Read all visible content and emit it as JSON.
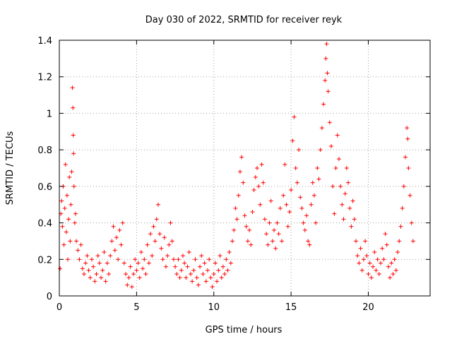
{
  "chart_data": {
    "type": "scatter",
    "title": "Day 030 of 2022, SRMTID for receiver reyk",
    "xlabel": "GPS time / hours",
    "ylabel": "SRMTID / TECUs",
    "xlim": [
      0,
      24
    ],
    "ylim": [
      0,
      1.4
    ],
    "xticks": [
      0,
      5,
      10,
      15,
      20
    ],
    "xtick_labels": [
      "0",
      "5",
      "10",
      "15",
      "20"
    ],
    "yticks": [
      0,
      0.2,
      0.4,
      0.6,
      0.8,
      1,
      1.2,
      1.4
    ],
    "ytick_labels": [
      "0",
      "0.2",
      "0.4",
      "0.6",
      "0.8",
      "1",
      "1.2",
      "1.4"
    ],
    "grid": true,
    "marker": "+",
    "series": [
      {
        "name": "reyk",
        "color": "#ff0000",
        "points": [
          [
            0.05,
            0.15
          ],
          [
            0.1,
            0.45
          ],
          [
            0.15,
            0.52
          ],
          [
            0.2,
            0.38
          ],
          [
            0.25,
            0.6
          ],
          [
            0.3,
            0.28
          ],
          [
            0.35,
            0.48
          ],
          [
            0.4,
            0.72
          ],
          [
            0.45,
            0.35
          ],
          [
            0.5,
            0.55
          ],
          [
            0.55,
            0.2
          ],
          [
            0.6,
            0.42
          ],
          [
            0.65,
            0.65
          ],
          [
            0.7,
            0.3
          ],
          [
            0.75,
            0.5
          ],
          [
            0.8,
            0.68
          ],
          [
            0.85,
            1.14
          ],
          [
            0.88,
            1.03
          ],
          [
            0.9,
            0.88
          ],
          [
            0.92,
            0.78
          ],
          [
            0.95,
            0.6
          ],
          [
            1.0,
            0.4
          ],
          [
            1.05,
            0.45
          ],
          [
            1.1,
            0.3
          ],
          [
            1.2,
            0.25
          ],
          [
            1.3,
            0.2
          ],
          [
            1.4,
            0.28
          ],
          [
            1.5,
            0.15
          ],
          [
            1.6,
            0.12
          ],
          [
            1.7,
            0.18
          ],
          [
            1.8,
            0.22
          ],
          [
            1.9,
            0.14
          ],
          [
            2.0,
            0.1
          ],
          [
            2.1,
            0.2
          ],
          [
            2.2,
            0.16
          ],
          [
            2.3,
            0.08
          ],
          [
            2.4,
            0.12
          ],
          [
            2.5,
            0.22
          ],
          [
            2.6,
            0.18
          ],
          [
            2.7,
            0.1
          ],
          [
            2.8,
            0.14
          ],
          [
            2.9,
            0.24
          ],
          [
            3.0,
            0.08
          ],
          [
            3.1,
            0.18
          ],
          [
            3.2,
            0.12
          ],
          [
            3.3,
            0.22
          ],
          [
            3.4,
            0.3
          ],
          [
            3.5,
            0.38
          ],
          [
            3.6,
            0.25
          ],
          [
            3.7,
            0.32
          ],
          [
            3.8,
            0.2
          ],
          [
            3.9,
            0.36
          ],
          [
            4.0,
            0.28
          ],
          [
            4.1,
            0.4
          ],
          [
            4.2,
            0.18
          ],
          [
            4.3,
            0.12
          ],
          [
            4.4,
            0.06
          ],
          [
            4.5,
            0.1
          ],
          [
            4.6,
            0.16
          ],
          [
            4.7,
            0.05
          ],
          [
            4.8,
            0.12
          ],
          [
            4.9,
            0.2
          ],
          [
            5.0,
            0.14
          ],
          [
            5.1,
            0.18
          ],
          [
            5.2,
            0.1
          ],
          [
            5.3,
            0.24
          ],
          [
            5.4,
            0.15
          ],
          [
            5.5,
            0.2
          ],
          [
            5.6,
            0.12
          ],
          [
            5.7,
            0.28
          ],
          [
            5.8,
            0.18
          ],
          [
            5.9,
            0.34
          ],
          [
            6.0,
            0.22
          ],
          [
            6.1,
            0.38
          ],
          [
            6.2,
            0.3
          ],
          [
            6.3,
            0.42
          ],
          [
            6.4,
            0.5
          ],
          [
            6.5,
            0.34
          ],
          [
            6.6,
            0.26
          ],
          [
            6.7,
            0.2
          ],
          [
            6.8,
            0.32
          ],
          [
            6.9,
            0.16
          ],
          [
            7.0,
            0.22
          ],
          [
            7.1,
            0.28
          ],
          [
            7.2,
            0.4
          ],
          [
            7.3,
            0.3
          ],
          [
            7.4,
            0.2
          ],
          [
            7.5,
            0.16
          ],
          [
            7.6,
            0.12
          ],
          [
            7.7,
            0.2
          ],
          [
            7.8,
            0.1
          ],
          [
            7.9,
            0.14
          ],
          [
            8.0,
            0.22
          ],
          [
            8.1,
            0.18
          ],
          [
            8.2,
            0.1
          ],
          [
            8.3,
            0.16
          ],
          [
            8.4,
            0.24
          ],
          [
            8.5,
            0.12
          ],
          [
            8.6,
            0.08
          ],
          [
            8.7,
            0.14
          ],
          [
            8.8,
            0.2
          ],
          [
            8.9,
            0.1
          ],
          [
            9.0,
            0.06
          ],
          [
            9.1,
            0.16
          ],
          [
            9.2,
            0.22
          ],
          [
            9.3,
            0.12
          ],
          [
            9.4,
            0.18
          ],
          [
            9.5,
            0.08
          ],
          [
            9.6,
            0.14
          ],
          [
            9.7,
            0.2
          ],
          [
            9.8,
            0.1
          ],
          [
            9.9,
            0.05
          ],
          [
            10.0,
            0.12
          ],
          [
            10.1,
            0.18
          ],
          [
            10.2,
            0.08
          ],
          [
            10.3,
            0.14
          ],
          [
            10.4,
            0.22
          ],
          [
            10.5,
            0.1
          ],
          [
            10.6,
            0.16
          ],
          [
            10.7,
            0.12
          ],
          [
            10.8,
            0.2
          ],
          [
            10.9,
            0.14
          ],
          [
            11.0,
            0.24
          ],
          [
            11.1,
            0.18
          ],
          [
            11.2,
            0.3
          ],
          [
            11.3,
            0.36
          ],
          [
            11.4,
            0.48
          ],
          [
            11.5,
            0.42
          ],
          [
            11.6,
            0.55
          ],
          [
            11.7,
            0.68
          ],
          [
            11.8,
            0.76
          ],
          [
            11.9,
            0.62
          ],
          [
            12.0,
            0.44
          ],
          [
            12.1,
            0.38
          ],
          [
            12.2,
            0.3
          ],
          [
            12.3,
            0.36
          ],
          [
            12.4,
            0.28
          ],
          [
            12.5,
            0.46
          ],
          [
            12.6,
            0.58
          ],
          [
            12.7,
            0.65
          ],
          [
            12.8,
            0.7
          ],
          [
            12.9,
            0.6
          ],
          [
            13.0,
            0.5
          ],
          [
            13.1,
            0.72
          ],
          [
            13.2,
            0.62
          ],
          [
            13.3,
            0.42
          ],
          [
            13.4,
            0.34
          ],
          [
            13.5,
            0.28
          ],
          [
            13.6,
            0.4
          ],
          [
            13.7,
            0.52
          ],
          [
            13.8,
            0.3
          ],
          [
            13.9,
            0.36
          ],
          [
            14.0,
            0.26
          ],
          [
            14.1,
            0.4
          ],
          [
            14.2,
            0.34
          ],
          [
            14.3,
            0.48
          ],
          [
            14.4,
            0.3
          ],
          [
            14.5,
            0.55
          ],
          [
            14.6,
            0.72
          ],
          [
            14.7,
            0.5
          ],
          [
            14.8,
            0.38
          ],
          [
            14.9,
            0.46
          ],
          [
            15.0,
            0.58
          ],
          [
            15.1,
            0.85
          ],
          [
            15.2,
            0.98
          ],
          [
            15.3,
            0.7
          ],
          [
            15.4,
            0.62
          ],
          [
            15.5,
            0.8
          ],
          [
            15.6,
            0.54
          ],
          [
            15.7,
            0.48
          ],
          [
            15.8,
            0.4
          ],
          [
            15.9,
            0.36
          ],
          [
            16.0,
            0.44
          ],
          [
            16.1,
            0.3
          ],
          [
            16.2,
            0.28
          ],
          [
            16.3,
            0.5
          ],
          [
            16.4,
            0.62
          ],
          [
            16.5,
            0.55
          ],
          [
            16.6,
            0.4
          ],
          [
            16.7,
            0.7
          ],
          [
            16.8,
            0.64
          ],
          [
            16.9,
            0.8
          ],
          [
            17.0,
            0.92
          ],
          [
            17.1,
            1.05
          ],
          [
            17.2,
            1.18
          ],
          [
            17.25,
            1.3
          ],
          [
            17.3,
            1.38
          ],
          [
            17.35,
            1.22
          ],
          [
            17.4,
            1.12
          ],
          [
            17.5,
            0.95
          ],
          [
            17.6,
            0.82
          ],
          [
            17.7,
            0.6
          ],
          [
            17.8,
            0.45
          ],
          [
            17.9,
            0.7
          ],
          [
            18.0,
            0.88
          ],
          [
            18.1,
            0.75
          ],
          [
            18.2,
            0.6
          ],
          [
            18.3,
            0.5
          ],
          [
            18.4,
            0.42
          ],
          [
            18.5,
            0.56
          ],
          [
            18.6,
            0.7
          ],
          [
            18.7,
            0.62
          ],
          [
            18.8,
            0.48
          ],
          [
            18.9,
            0.38
          ],
          [
            19.0,
            0.52
          ],
          [
            19.1,
            0.42
          ],
          [
            19.2,
            0.3
          ],
          [
            19.3,
            0.22
          ],
          [
            19.4,
            0.18
          ],
          [
            19.5,
            0.26
          ],
          [
            19.6,
            0.14
          ],
          [
            19.7,
            0.2
          ],
          [
            19.8,
            0.3
          ],
          [
            19.9,
            0.22
          ],
          [
            20.0,
            0.12
          ],
          [
            20.1,
            0.18
          ],
          [
            20.2,
            0.1
          ],
          [
            20.3,
            0.16
          ],
          [
            20.4,
            0.24
          ],
          [
            20.5,
            0.14
          ],
          [
            20.6,
            0.2
          ],
          [
            20.7,
            0.12
          ],
          [
            20.8,
            0.18
          ],
          [
            20.9,
            0.26
          ],
          [
            21.0,
            0.2
          ],
          [
            21.1,
            0.34
          ],
          [
            21.2,
            0.28
          ],
          [
            21.3,
            0.16
          ],
          [
            21.4,
            0.1
          ],
          [
            21.5,
            0.18
          ],
          [
            21.6,
            0.12
          ],
          [
            21.7,
            0.2
          ],
          [
            21.8,
            0.14
          ],
          [
            21.9,
            0.24
          ],
          [
            22.0,
            0.3
          ],
          [
            22.1,
            0.38
          ],
          [
            22.2,
            0.48
          ],
          [
            22.3,
            0.6
          ],
          [
            22.4,
            0.76
          ],
          [
            22.5,
            0.92
          ],
          [
            22.55,
            0.86
          ],
          [
            22.6,
            0.7
          ],
          [
            22.7,
            0.55
          ],
          [
            22.8,
            0.4
          ],
          [
            22.9,
            0.3
          ]
        ]
      }
    ]
  }
}
